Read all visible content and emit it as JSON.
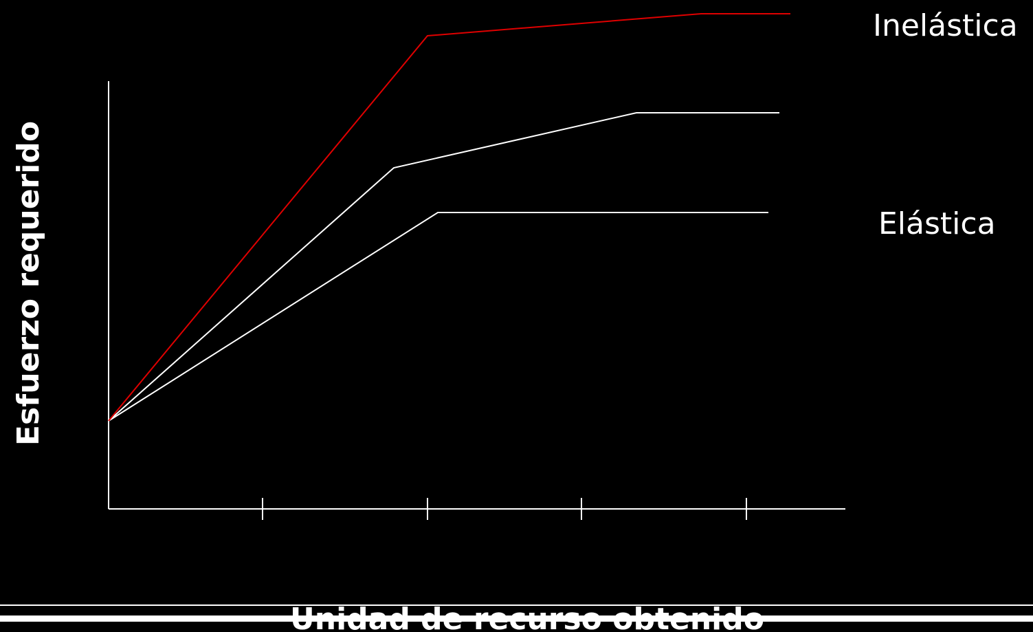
{
  "labels": {
    "inelastic": "Inelástica",
    "elastic": "Elástica",
    "y_axis": "Esfuerzo requerido",
    "x_axis": "Unidad de recurso obtenido"
  }
}
